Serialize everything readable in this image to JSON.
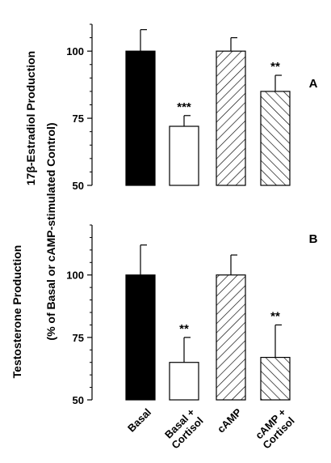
{
  "ylabel_outer": "17β-Estradiol Production",
  "ylabel_shared": "(% of Basal or cAMP-stimulated Control)",
  "ylabel_lower": "Testosterone Production",
  "colors": {
    "solid": "#000000",
    "open": "#ffffff",
    "edge": "#000000"
  },
  "chart_data": [
    {
      "type": "bar",
      "panel": "A",
      "categories": [
        "Basal",
        "Basal + Cortisol",
        "cAMP",
        "cAMP + Cortisol"
      ],
      "values": [
        100,
        72,
        100,
        85
      ],
      "errors": [
        8,
        4,
        5,
        6
      ],
      "significance": [
        "",
        "***",
        "",
        "**"
      ],
      "fills": [
        "solid",
        "open",
        "hatch-forward",
        "hatch-back"
      ],
      "yticks": [
        "50",
        "75",
        "100"
      ],
      "ylim": [
        50,
        110
      ]
    },
    {
      "type": "bar",
      "panel": "B",
      "categories": [
        "Basal",
        "Basal + Cortisol",
        "cAMP",
        "cAMP + Cortisol"
      ],
      "category_labels": [
        [
          "Basal"
        ],
        [
          "Basal +",
          "Cortisol"
        ],
        [
          "cAMP"
        ],
        [
          "cAMP +",
          "Cortisol"
        ]
      ],
      "values": [
        100,
        65,
        100,
        67
      ],
      "errors": [
        12,
        10,
        8,
        13
      ],
      "significance": [
        "",
        "**",
        "",
        "**"
      ],
      "fills": [
        "solid",
        "open",
        "hatch-forward",
        "hatch-back"
      ],
      "yticks": [
        "50",
        "75",
        "100"
      ],
      "ylim": [
        50,
        120
      ]
    }
  ]
}
